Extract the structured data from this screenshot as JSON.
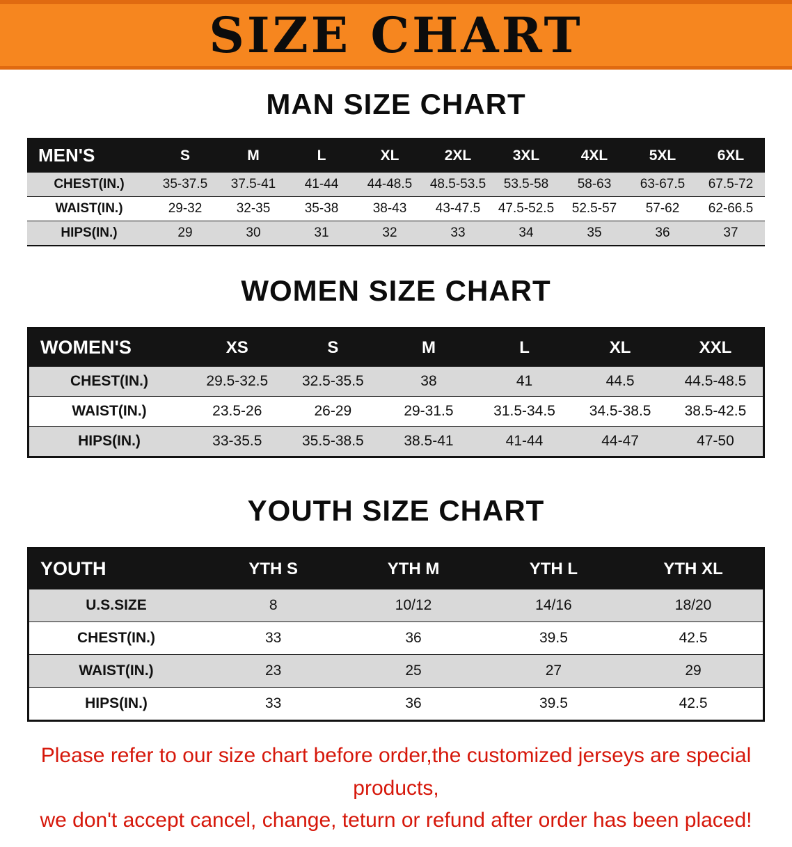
{
  "banner": {
    "title": "SIZE CHART"
  },
  "sections": {
    "men": {
      "heading": "MAN SIZE CHART",
      "table": {
        "header": [
          "MEN'S",
          "S",
          "M",
          "L",
          "XL",
          "2XL",
          "3XL",
          "4XL",
          "5XL",
          "6XL"
        ],
        "rows": [
          [
            "CHEST(IN.)",
            "35-37.5",
            "37.5-41",
            "41-44",
            "44-48.5",
            "48.5-53.5",
            "53.5-58",
            "58-63",
            "63-67.5",
            "67.5-72"
          ],
          [
            "WAIST(IN.)",
            "29-32",
            "32-35",
            "35-38",
            "38-43",
            "43-47.5",
            "47.5-52.5",
            "52.5-57",
            "57-62",
            "62-66.5"
          ],
          [
            "HIPS(IN.)",
            "29",
            "30",
            "31",
            "32",
            "33",
            "34",
            "35",
            "36",
            "37"
          ]
        ]
      }
    },
    "women": {
      "heading": "WOMEN SIZE CHART",
      "table": {
        "header": [
          "WOMEN'S",
          "XS",
          "S",
          "M",
          "L",
          "XL",
          "XXL"
        ],
        "rows": [
          [
            "CHEST(IN.)",
            "29.5-32.5",
            "32.5-35.5",
            "38",
            "41",
            "44.5",
            "44.5-48.5"
          ],
          [
            "WAIST(IN.)",
            "23.5-26",
            "26-29",
            "29-31.5",
            "31.5-34.5",
            "34.5-38.5",
            "38.5-42.5"
          ],
          [
            "HIPS(IN.)",
            "33-35.5",
            "35.5-38.5",
            "38.5-41",
            "41-44",
            "44-47",
            "47-50"
          ]
        ]
      }
    },
    "youth": {
      "heading": "YOUTH SIZE CHART",
      "table": {
        "header": [
          "YOUTH",
          "YTH S",
          "YTH M",
          "YTH L",
          "YTH XL"
        ],
        "rows": [
          [
            "U.S.SIZE",
            "8",
            "10/12",
            "14/16",
            "18/20"
          ],
          [
            "CHEST(IN.)",
            "33",
            "36",
            "39.5",
            "42.5"
          ],
          [
            "WAIST(IN.)",
            "23",
            "25",
            "27",
            "29"
          ],
          [
            "HIPS(IN.)",
            "33",
            "36",
            "39.5",
            "42.5"
          ]
        ]
      }
    }
  },
  "disclaimer": {
    "line1": "Please refer to our size chart before order,the customized jerseys are special products,",
    "line2": "we don't accept cancel, change, teturn or refund after order has been placed!"
  },
  "colors": {
    "banner_orange": "#f6861f",
    "banner_edge": "#e06a10",
    "header_black": "#141414",
    "row_gray": "#d9d9d9",
    "disclaimer_red": "#d6170a"
  }
}
